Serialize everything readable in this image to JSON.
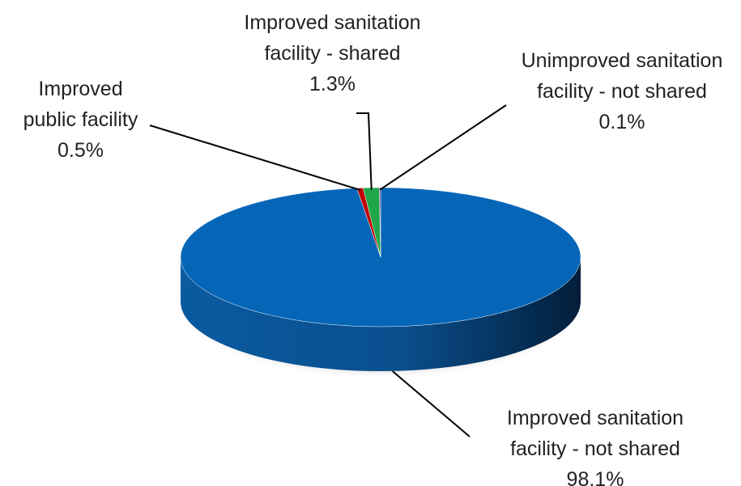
{
  "chart_data": {
    "type": "pie",
    "categories": [
      "Improved sanitation facility - not shared",
      "Improved public facility",
      "Improved sanitation facility - shared",
      "Unimproved sanitation facility - not shared"
    ],
    "values": [
      98.1,
      0.5,
      1.3,
      0.1
    ],
    "value_labels": [
      "98.1%",
      "0.5%",
      "1.3%",
      "0.1%"
    ],
    "colors": [
      "#0566b8",
      "#c00000",
      "#20a64a",
      "#7030a0"
    ]
  }
}
